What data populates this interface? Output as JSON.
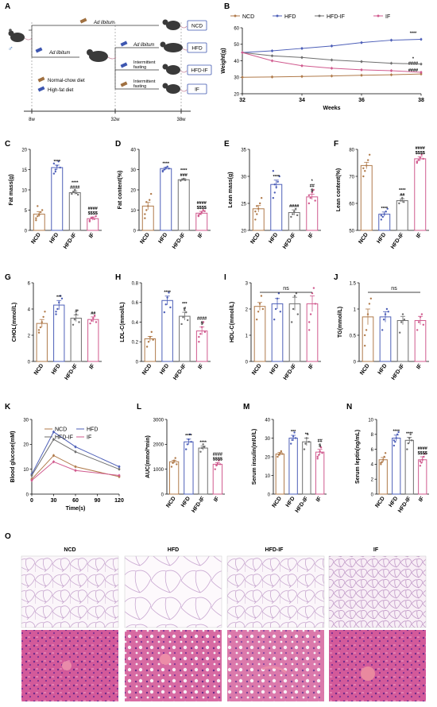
{
  "colors": {
    "NCD": "#b07a4a",
    "HFD": "#4d5fb8",
    "HFD-IF": "#6e6e6e",
    "IF": "#d05a8e"
  },
  "groups": [
    "NCD",
    "HFD",
    "HFD-IF",
    "IF"
  ],
  "schematic": {
    "label": "A",
    "ad_libitum": "Ad libitum",
    "intermittent": "Intermittent",
    "fasting": "fasting",
    "legend_normal": "Normal-chow diet",
    "legend_high": "High-fat diet",
    "times": [
      "8w",
      "32w",
      "38w"
    ],
    "sex": "♂",
    "boxes": [
      "NCD",
      "HFD",
      "HFD-IF",
      "IF"
    ]
  },
  "chart_data": [
    {
      "id": "B",
      "type": "line",
      "xlabel": "Weeks",
      "ylabel": "Weight(g)",
      "xlim": [
        32,
        38
      ],
      "ylim": [
        20,
        60
      ],
      "xticks": [
        32,
        34,
        36,
        38
      ],
      "yticks": [
        20,
        30,
        40,
        50,
        60
      ],
      "legend": [
        "NCD",
        "HFD",
        "HFD-IF",
        "IF"
      ],
      "x": [
        32,
        33,
        34,
        35,
        36,
        37,
        38
      ],
      "series": [
        {
          "name": "NCD",
          "values": [
            30,
            30.2,
            30.5,
            30.8,
            31.2,
            31.5,
            32
          ]
        },
        {
          "name": "HFD",
          "values": [
            45,
            46,
            47.5,
            49,
            51,
            52.5,
            53
          ]
        },
        {
          "name": "HFD-IF",
          "values": [
            45,
            43,
            42,
            40.5,
            39.5,
            38.5,
            38
          ]
        },
        {
          "name": "IF",
          "values": [
            45,
            40,
            37,
            35.5,
            34.5,
            34,
            33
          ]
        }
      ],
      "annotations": [
        {
          "text": "****",
          "y": 56
        },
        {
          "text": "*",
          "y": 40.5
        },
        {
          "text": "####",
          "y": 37.5
        },
        {
          "text": "####",
          "y": 33.5
        }
      ]
    },
    {
      "id": "C",
      "type": "bar",
      "ylabel": "Fat mass(g)",
      "ylim": [
        0,
        20
      ],
      "yticks": [
        0,
        5,
        10,
        15,
        20
      ],
      "values": [
        4,
        15.5,
        9.3,
        2.9
      ],
      "err": [
        0.6,
        0.6,
        0.4,
        0.4
      ],
      "points": [
        [
          3,
          3.5,
          4,
          4.5,
          5,
          2.5,
          6,
          3.8
        ],
        [
          14,
          15,
          16,
          17,
          15.5,
          16.5,
          14.5
        ],
        [
          9,
          9.5,
          10,
          9.2,
          8.8
        ],
        [
          2.5,
          3,
          3.2,
          2.8,
          3.5,
          2.2
        ]
      ],
      "sig": [
        [
          "",
          ""
        ],
        [
          "****",
          ""
        ],
        [
          "****",
          "####"
        ],
        [
          "####",
          "$$$$"
        ]
      ]
    },
    {
      "id": "D",
      "type": "bar",
      "ylabel": "Fat content(%)",
      "ylim": [
        0,
        40
      ],
      "yticks": [
        0,
        10,
        20,
        30,
        40
      ],
      "values": [
        12,
        30.5,
        25,
        8.5
      ],
      "err": [
        1.8,
        0.6,
        0.5,
        0.9
      ],
      "points": [
        [
          8,
          10,
          12,
          15,
          18,
          6,
          14
        ],
        [
          29,
          30,
          31,
          31.5,
          30.5,
          29.5
        ],
        [
          24.5,
          25,
          25.5,
          24.8
        ],
        [
          7,
          8,
          9,
          10,
          9.5,
          7.5
        ]
      ],
      "sig": [
        [
          "",
          ""
        ],
        [
          "****",
          ""
        ],
        [
          "****",
          "###"
        ],
        [
          "####",
          "$$$$"
        ]
      ]
    },
    {
      "id": "E",
      "type": "bar",
      "ylabel": "Lean mass(g)",
      "ylim": [
        20,
        35
      ],
      "yticks": [
        20,
        25,
        30,
        35
      ],
      "values": [
        24,
        28.5,
        23.3,
        26.2
      ],
      "err": [
        0.6,
        0.8,
        0.5,
        0.5
      ],
      "points": [
        [
          22,
          23,
          24,
          25,
          26,
          23.5,
          24.5
        ],
        [
          26,
          27,
          28,
          29,
          30,
          31,
          28.5
        ],
        [
          22.5,
          23,
          23.5,
          24,
          22.8
        ],
        [
          25,
          26,
          27,
          27.5,
          25.5,
          26.5
        ]
      ],
      "sig": [
        [
          "",
          ""
        ],
        [
          "****",
          ""
        ],
        [
          "####",
          ""
        ],
        [
          "*",
          "##",
          "$"
        ]
      ]
    },
    {
      "id": "F",
      "type": "bar",
      "ylabel": "Lean content(%)",
      "ylim": [
        50,
        80
      ],
      "yticks": [
        50,
        60,
        70,
        80
      ],
      "values": [
        74,
        56,
        61,
        76.5
      ],
      "err": [
        1.2,
        0.8,
        0.7,
        0.8
      ],
      "points": [
        [
          70,
          72,
          74,
          76,
          78,
          73
        ],
        [
          54,
          55,
          56,
          57,
          58,
          55.5
        ],
        [
          60,
          61,
          62,
          60.5
        ],
        [
          75,
          76,
          77,
          78,
          76.5,
          75.5
        ]
      ],
      "sig": [
        [
          "",
          ""
        ],
        [
          "****",
          ""
        ],
        [
          "****",
          "##"
        ],
        [
          "####",
          "$$$$"
        ]
      ]
    },
    {
      "id": "G",
      "type": "bar",
      "ylabel": "CHOL(mmol/L)",
      "ylim": [
        0,
        6
      ],
      "yticks": [
        0,
        2,
        4,
        6
      ],
      "values": [
        2.9,
        4.3,
        3.3,
        3.2
      ],
      "err": [
        0.3,
        0.35,
        0.25,
        0.2
      ],
      "points": [
        [
          2.2,
          2.6,
          3,
          3.4,
          3.8,
          2.4
        ],
        [
          3.6,
          4,
          4.5,
          5,
          4.8,
          3.8
        ],
        [
          2.8,
          3.2,
          3.6,
          3.9,
          3
        ],
        [
          2.9,
          3.1,
          3.3,
          3.5,
          3
        ]
      ],
      "sig": [
        [
          "",
          ""
        ],
        [
          "***",
          ""
        ],
        [
          "#",
          ""
        ],
        [
          "##",
          ""
        ]
      ]
    },
    {
      "id": "H",
      "type": "bar",
      "ylabel": "LDL-C(mmol/L)",
      "ylim": [
        0,
        0.8
      ],
      "yticks": [
        0,
        0.2,
        0.4,
        0.6,
        0.8
      ],
      "values": [
        0.23,
        0.62,
        0.46,
        0.31
      ],
      "err": [
        0.025,
        0.045,
        0.04,
        0.04
      ],
      "points": [
        [
          0.15,
          0.2,
          0.25,
          0.3,
          0.22
        ],
        [
          0.5,
          0.58,
          0.65,
          0.7,
          0.55
        ],
        [
          0.38,
          0.45,
          0.52,
          0.5,
          0.42
        ],
        [
          0.2,
          0.28,
          0.35,
          0.4,
          0.3,
          0.25
        ]
      ],
      "sig": [
        [
          "",
          ""
        ],
        [
          "****",
          ""
        ],
        [
          "***",
          "#"
        ],
        [
          "####",
          "$"
        ]
      ]
    },
    {
      "id": "I",
      "type": "bar",
      "ylabel": "HDL-C(mmol/L)",
      "ylim": [
        0,
        3
      ],
      "yticks": [
        0,
        1,
        2,
        3
      ],
      "values": [
        2.1,
        2.2,
        2.2,
        2.2
      ],
      "err": [
        0.15,
        0.2,
        0.25,
        0.3
      ],
      "points": [
        [
          1.6,
          1.9,
          2.2,
          2.5,
          2.0
        ],
        [
          1.6,
          2,
          2.4,
          2.6,
          1.9
        ],
        [
          1.5,
          2,
          2.5,
          2.6,
          1.8
        ],
        [
          1.2,
          1.8,
          2.6,
          2.8,
          2.2,
          1.5
        ]
      ],
      "ns": "ns"
    },
    {
      "id": "J",
      "type": "bar",
      "ylabel": "TG(mmol/L)",
      "ylim": [
        0,
        1.5
      ],
      "yticks": [
        0,
        0.5,
        1,
        1.5
      ],
      "values": [
        0.85,
        0.85,
        0.78,
        0.78
      ],
      "err": [
        0.15,
        0.1,
        0.08,
        0.08
      ],
      "points": [
        [
          0.3,
          0.6,
          0.9,
          1.1,
          1.2,
          0.5
        ],
        [
          0.6,
          0.8,
          0.9,
          1,
          0.95
        ],
        [
          0.55,
          0.75,
          0.9,
          0.8
        ],
        [
          0.6,
          0.75,
          0.85,
          0.9,
          0.7
        ]
      ],
      "ns": "ns"
    },
    {
      "id": "K",
      "type": "line",
      "xlabel": "Time(s)",
      "ylabel": "Blood glucose(mM)",
      "xlim": [
        0,
        120
      ],
      "ylim": [
        0,
        30
      ],
      "xticks": [
        0,
        30,
        60,
        90,
        120
      ],
      "yticks": [
        0,
        10,
        20,
        30
      ],
      "legend": [
        "NCD",
        "HFD",
        "HFD-IF",
        "IF"
      ],
      "x": [
        0,
        30,
        60,
        120
      ],
      "series": [
        {
          "name": "NCD",
          "values": [
            6,
            15.5,
            11,
            7
          ]
        },
        {
          "name": "HFD",
          "values": [
            8,
            25,
            19,
            11
          ]
        },
        {
          "name": "HFD-IF",
          "values": [
            7.5,
            22,
            17,
            10
          ]
        },
        {
          "name": "IF",
          "values": [
            5.5,
            13,
            9.5,
            7.5
          ]
        }
      ]
    },
    {
      "id": "L",
      "type": "bar",
      "ylabel": "AUC(mmol*min)",
      "ylim": [
        0,
        3000
      ],
      "yticks": [
        0,
        1000,
        2000,
        3000
      ],
      "values": [
        1300,
        2100,
        1850,
        1200
      ],
      "err": [
        60,
        110,
        80,
        60
      ],
      "points": [
        [
          1100,
          1250,
          1350,
          1450,
          1200
        ],
        [
          1800,
          2000,
          2200,
          2400,
          2100
        ],
        [
          1700,
          1850,
          2000,
          1900
        ],
        [
          1000,
          1150,
          1250,
          1350,
          1200
        ]
      ],
      "sig": [
        [
          "",
          ""
        ],
        [
          "****",
          ""
        ],
        [
          "****",
          ""
        ],
        [
          "####",
          "$$$$"
        ]
      ]
    },
    {
      "id": "M",
      "type": "bar",
      "ylabel": "Serum insulin(mIU/L)",
      "ylim": [
        0,
        40
      ],
      "yticks": [
        0,
        10,
        20,
        30,
        40
      ],
      "values": [
        21.5,
        30,
        28,
        22.5
      ],
      "err": [
        0.8,
        1.5,
        2,
        1.5
      ],
      "points": [
        [
          20,
          21,
          22,
          23,
          21.5
        ],
        [
          27,
          29,
          31,
          33,
          30
        ],
        [
          24,
          27,
          30,
          32,
          28
        ],
        [
          19,
          21,
          23,
          25,
          22,
          20
        ]
      ],
      "sig": [
        [
          "",
          ""
        ],
        [
          "***",
          ""
        ],
        [
          "**",
          ""
        ],
        [
          "##",
          "$"
        ]
      ]
    },
    {
      "id": "N",
      "type": "bar",
      "ylabel": "Serum leptin(ng/mL)",
      "ylim": [
        0,
        10
      ],
      "yticks": [
        0,
        2,
        4,
        6,
        8,
        10
      ],
      "values": [
        4.6,
        7.5,
        7.2,
        4.6
      ],
      "err": [
        0.3,
        0.4,
        0.4,
        0.4
      ],
      "points": [
        [
          4,
          4.3,
          4.6,
          5,
          5.5,
          4.2
        ],
        [
          6.5,
          7,
          7.5,
          8,
          8.3,
          7.2
        ],
        [
          6,
          6.8,
          7.5,
          8,
          7.2
        ],
        [
          3.8,
          4.2,
          4.6,
          5,
          5.4,
          4.4
        ]
      ],
      "sig": [
        [
          "",
          ""
        ],
        [
          "****",
          ""
        ],
        [
          "****",
          ""
        ],
        [
          "####",
          "$$$$"
        ]
      ]
    }
  ],
  "histology": {
    "label": "O",
    "columns": [
      "NCD",
      "HFD",
      "HFD-IF",
      "IF"
    ]
  }
}
